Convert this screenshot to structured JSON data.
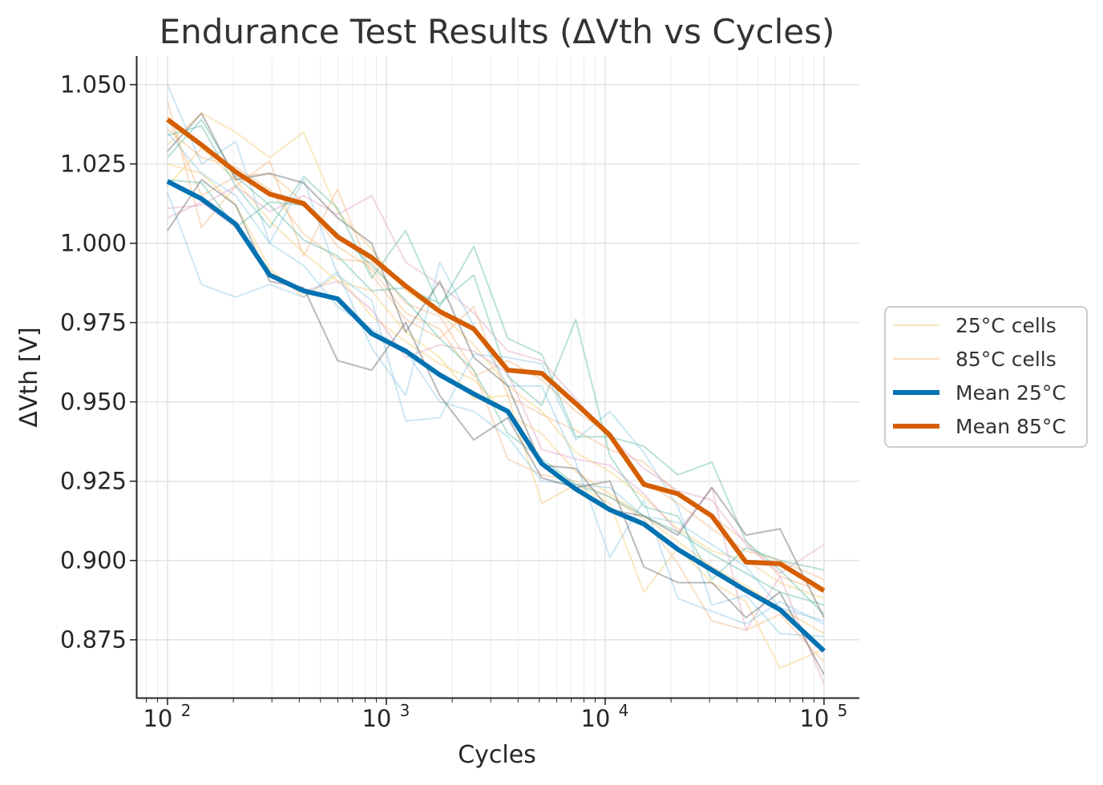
{
  "chart_data": {
    "type": "line",
    "title": "Endurance Test Results (ΔVth vs Cycles)",
    "xlabel": "Cycles",
    "ylabel": "ΔVth [V]",
    "xscale": "log",
    "xlim": [
      72,
      145000
    ],
    "ylim": [
      0.8565,
      1.059
    ],
    "grid": true,
    "legend_placement": "center-right outside",
    "x": [
      100,
      143,
      205,
      293,
      419,
      599,
      857,
      1226,
      1754,
      2509,
      3589,
      5134,
      7344,
      10505,
      15027,
      21496,
      30749,
      43986,
      62920,
      100000
    ],
    "x_tick_labels": [
      {
        "value": 100,
        "base": "10",
        "exp": "2"
      },
      {
        "value": 1000,
        "base": "10",
        "exp": "3"
      },
      {
        "value": 10000,
        "base": "10",
        "exp": "4"
      },
      {
        "value": 100000,
        "base": "10",
        "exp": "5"
      }
    ],
    "y_ticks": [
      0.875,
      0.9,
      0.925,
      0.95,
      0.975,
      1.0,
      1.025,
      1.05
    ],
    "y_tick_labels": [
      "0.875",
      "0.900",
      "0.925",
      "0.950",
      "0.975",
      "1.000",
      "1.025",
      "1.050"
    ],
    "series": [
      {
        "name": "25°C cells",
        "color": "#f5d58a",
        "width": 2,
        "opacity": 0.55,
        "kind": "cells",
        "members": [
          [
            1.031,
            1.041,
            1.035,
            1.027,
            1.035,
            1.01,
            0.998,
            0.985,
            0.978,
            0.968,
            0.955,
            0.947,
            0.934,
            0.928,
            0.92,
            0.91,
            0.903,
            0.9,
            0.893,
            0.888
          ],
          [
            1.025,
            1.022,
            1.012,
            0.992,
            0.983,
            0.99,
            0.977,
            0.969,
            0.962,
            0.957,
            0.946,
            0.94,
            0.928,
            0.921,
            0.914,
            0.906,
            0.898,
            0.892,
            0.885,
            0.877
          ],
          [
            1.018,
            1.03,
            1.02,
            1.007,
            0.997,
            0.988,
            0.985,
            0.972,
            0.964,
            0.951,
            0.952,
            0.918,
            0.924,
            0.918,
            0.89,
            0.904,
            0.893,
            0.887,
            0.866,
            0.872
          ]
        ]
      },
      {
        "name": "85°C cells",
        "color": "#f6c08f",
        "width": 2,
        "opacity": 0.5,
        "kind": "cells",
        "members": [
          [
            1.045,
            1.005,
            1.018,
            1.026,
            0.996,
            1.017,
            0.99,
            0.976,
            0.97,
            0.98,
            0.952,
            0.946,
            0.941,
            0.935,
            0.931,
            0.921,
            0.914,
            0.906,
            0.895,
            0.89
          ],
          [
            1.036,
            1.027,
            1.024,
            1.017,
            1.003,
            0.995,
            0.994,
            0.981,
            0.977,
            0.96,
            0.932,
            0.927,
            0.925,
            0.92,
            0.913,
            0.899,
            0.881,
            0.878,
            0.883,
            0.868
          ],
          [
            1.04,
            1.015,
            1.021,
            1.022,
            1.013,
            0.999,
            0.992,
            0.978,
            0.973,
            0.958,
            0.963,
            0.957,
            0.947,
            0.94,
            0.925,
            0.918,
            0.91,
            0.903,
            0.9,
            0.894
          ]
        ]
      },
      {
        "name": "",
        "color": "#e0a3c8",
        "width": 2,
        "opacity": 0.45,
        "kind": "cells",
        "members": [
          [
            1.011,
            1.012,
            1.018,
            1.01,
            1.015,
            1.009,
            1.015,
            0.994,
            0.987,
            0.978,
            0.966,
            0.963,
            0.951,
            0.939,
            0.929,
            0.922,
            0.919,
            0.905,
            0.896,
            0.905
          ],
          [
            1.008,
            1.013,
            1.005,
            0.99,
            0.985,
            0.988,
            0.979,
            0.964,
            0.968,
            0.966,
            0.959,
            0.935,
            0.932,
            0.93,
            0.921,
            0.909,
            0.923,
            0.878,
            0.895,
            0.861
          ]
        ]
      },
      {
        "name": "",
        "color": "#7fc4e4",
        "width": 2,
        "opacity": 0.4,
        "kind": "cells",
        "members": [
          [
            1.05,
            1.025,
            1.032,
            1.0,
            1.02,
            0.99,
            0.982,
            0.944,
            0.945,
            0.965,
            0.964,
            0.962,
            0.938,
            0.947,
            0.934,
            0.917,
            0.886,
            0.889,
            0.877,
            0.876
          ],
          [
            1.016,
            0.987,
            0.983,
            0.987,
            0.983,
            0.991,
            0.967,
            0.952,
            0.994,
            0.974,
            0.955,
            0.955,
            0.931,
            0.901,
            0.919,
            0.888,
            0.884,
            0.88,
            0.887,
            0.88
          ],
          [
            1.035,
            1.022,
            1.015,
            1.0,
            0.993,
            0.98,
            0.973,
            0.966,
            0.95,
            0.947,
            0.939,
            0.925,
            0.924,
            0.923,
            0.914,
            0.912,
            0.905,
            0.898,
            0.885,
            0.881
          ]
        ]
      },
      {
        "name": "",
        "color": "#52b79a",
        "width": 2,
        "opacity": 0.4,
        "kind": "cells",
        "members": [
          [
            1.034,
            1.037,
            1.018,
            1.005,
            1.021,
            1.011,
            0.989,
            1.004,
            0.98,
            0.999,
            0.97,
            0.965,
            0.939,
            0.939,
            0.936,
            0.927,
            0.931,
            0.906,
            0.897,
            0.883
          ],
          [
            1.02,
            1.019,
            1.005,
            1.013,
            1.012,
            1.003,
            0.993,
            0.982,
            0.97,
            0.96,
            0.94,
            0.932,
            0.924,
            0.92,
            0.914,
            0.909,
            0.902,
            0.896,
            0.89,
            0.886
          ],
          [
            1.027,
            1.039,
            1.021,
            1.012,
            1.001,
            0.996,
            0.985,
            0.986,
            0.981,
            0.99,
            0.958,
            0.949,
            0.976,
            0.933,
            0.917,
            0.914,
            0.894,
            0.904,
            0.9,
            0.897
          ]
        ]
      },
      {
        "name": "",
        "color": "#666666",
        "width": 2,
        "opacity": 0.45,
        "kind": "cells",
        "members": [
          [
            1.004,
            1.02,
            1.012,
            0.988,
            0.986,
            0.963,
            0.96,
            0.975,
            0.952,
            0.938,
            0.945,
            0.926,
            0.923,
            0.925,
            0.898,
            0.893,
            0.893,
            0.882,
            0.89,
            0.864
          ],
          [
            1.029,
            1.041,
            1.02,
            1.022,
            1.019,
            1.008,
            1.0,
            0.972,
            0.988,
            0.964,
            0.955,
            0.93,
            0.929,
            0.916,
            0.914,
            0.908,
            0.923,
            0.908,
            0.91,
            0.882
          ]
        ]
      },
      {
        "name": "Mean 25°C",
        "color": "#0072b2",
        "width": 6,
        "opacity": 1,
        "kind": "mean",
        "values": [
          1.0195,
          1.014,
          1.006,
          0.99,
          0.985,
          0.9825,
          0.9715,
          0.966,
          0.9585,
          0.9525,
          0.947,
          0.9305,
          0.9225,
          0.916,
          0.9115,
          0.9035,
          0.897,
          0.8905,
          0.8845,
          0.8715
        ]
      },
      {
        "name": "Mean 85°C",
        "color": "#d55e00",
        "width": 6,
        "opacity": 1,
        "kind": "mean",
        "values": [
          1.039,
          1.031,
          1.0225,
          1.0155,
          1.0125,
          1.002,
          0.9955,
          0.9865,
          0.9785,
          0.973,
          0.96,
          0.959,
          0.9495,
          0.9395,
          0.924,
          0.921,
          0.914,
          0.8995,
          0.899,
          0.8905
        ]
      }
    ],
    "legend": [
      {
        "label": "25°C cells",
        "color": "#f5d58a",
        "width": 2,
        "opacity": 0.6
      },
      {
        "label": "85°C cells",
        "color": "#f6c08f",
        "width": 2,
        "opacity": 0.6
      },
      {
        "label": "Mean 25°C",
        "color": "#0072b2",
        "width": 6,
        "opacity": 1
      },
      {
        "label": "Mean 85°C",
        "color": "#d55e00",
        "width": 6,
        "opacity": 1
      }
    ]
  }
}
